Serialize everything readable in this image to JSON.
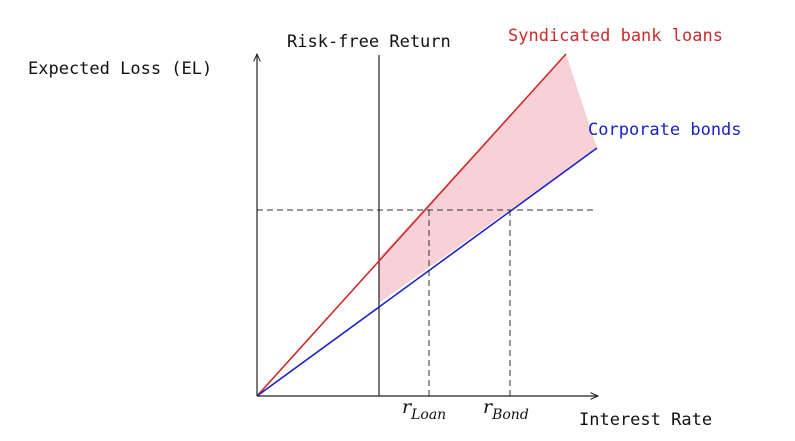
{
  "axes": {
    "y_label": "Expected Loss (EL)",
    "x_label": "Interest Rate"
  },
  "risk_free": {
    "label": "Risk-free Return"
  },
  "lines": {
    "loans": {
      "label": "Syndicated bank loans",
      "color": "#cc2b2b"
    },
    "bonds": {
      "label": "Corporate bonds",
      "color": "#1a23c4"
    }
  },
  "shade": {
    "color": "#f5c6cc"
  },
  "ticks": {
    "loan_base": "r",
    "loan_sub": "Loan",
    "bond_base": "r",
    "bond_sub": "Bond"
  }
}
